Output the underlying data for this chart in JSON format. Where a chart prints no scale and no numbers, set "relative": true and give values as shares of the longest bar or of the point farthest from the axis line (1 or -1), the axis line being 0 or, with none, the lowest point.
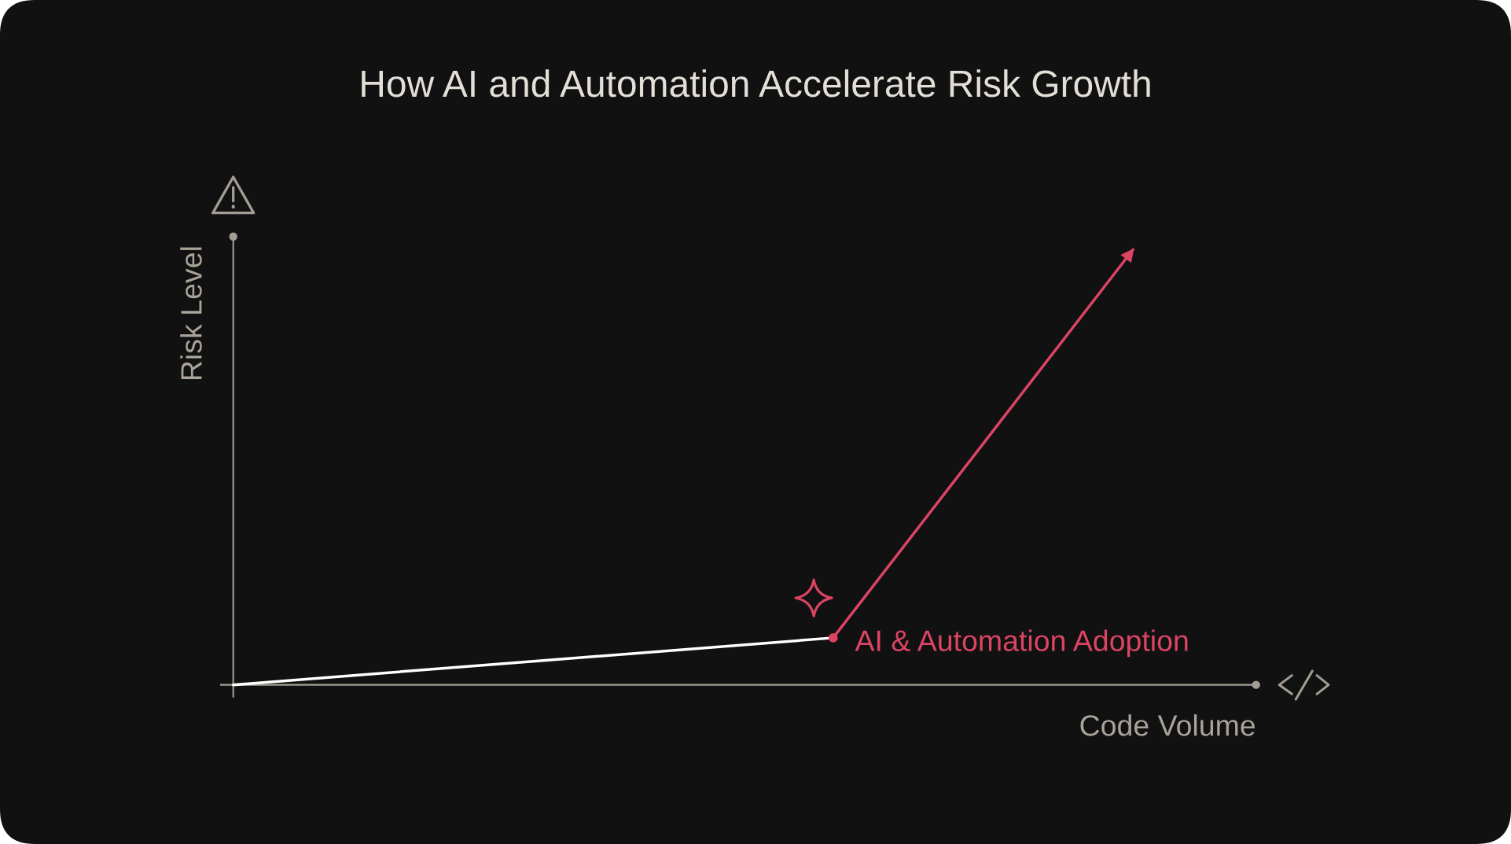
{
  "chart_data": {
    "type": "line",
    "title": "How AI and Automation Accelerate Risk Growth",
    "xlabel": "Code Volume",
    "ylabel": "Risk Level",
    "relative": true,
    "categories": [
      null,
      null,
      null,
      null
    ],
    "line_style": "solid",
    "series": [
      {
        "color": "#ffffff",
        "values": [
          0,
          0.054,
          0.108,
          null
        ]
      },
      {
        "name": "AI & Automation Adoption",
        "color": "#dc4463",
        "values": [
          null,
          null,
          0.108,
          1
        ],
        "marker": "circle"
      }
    ]
  }
}
